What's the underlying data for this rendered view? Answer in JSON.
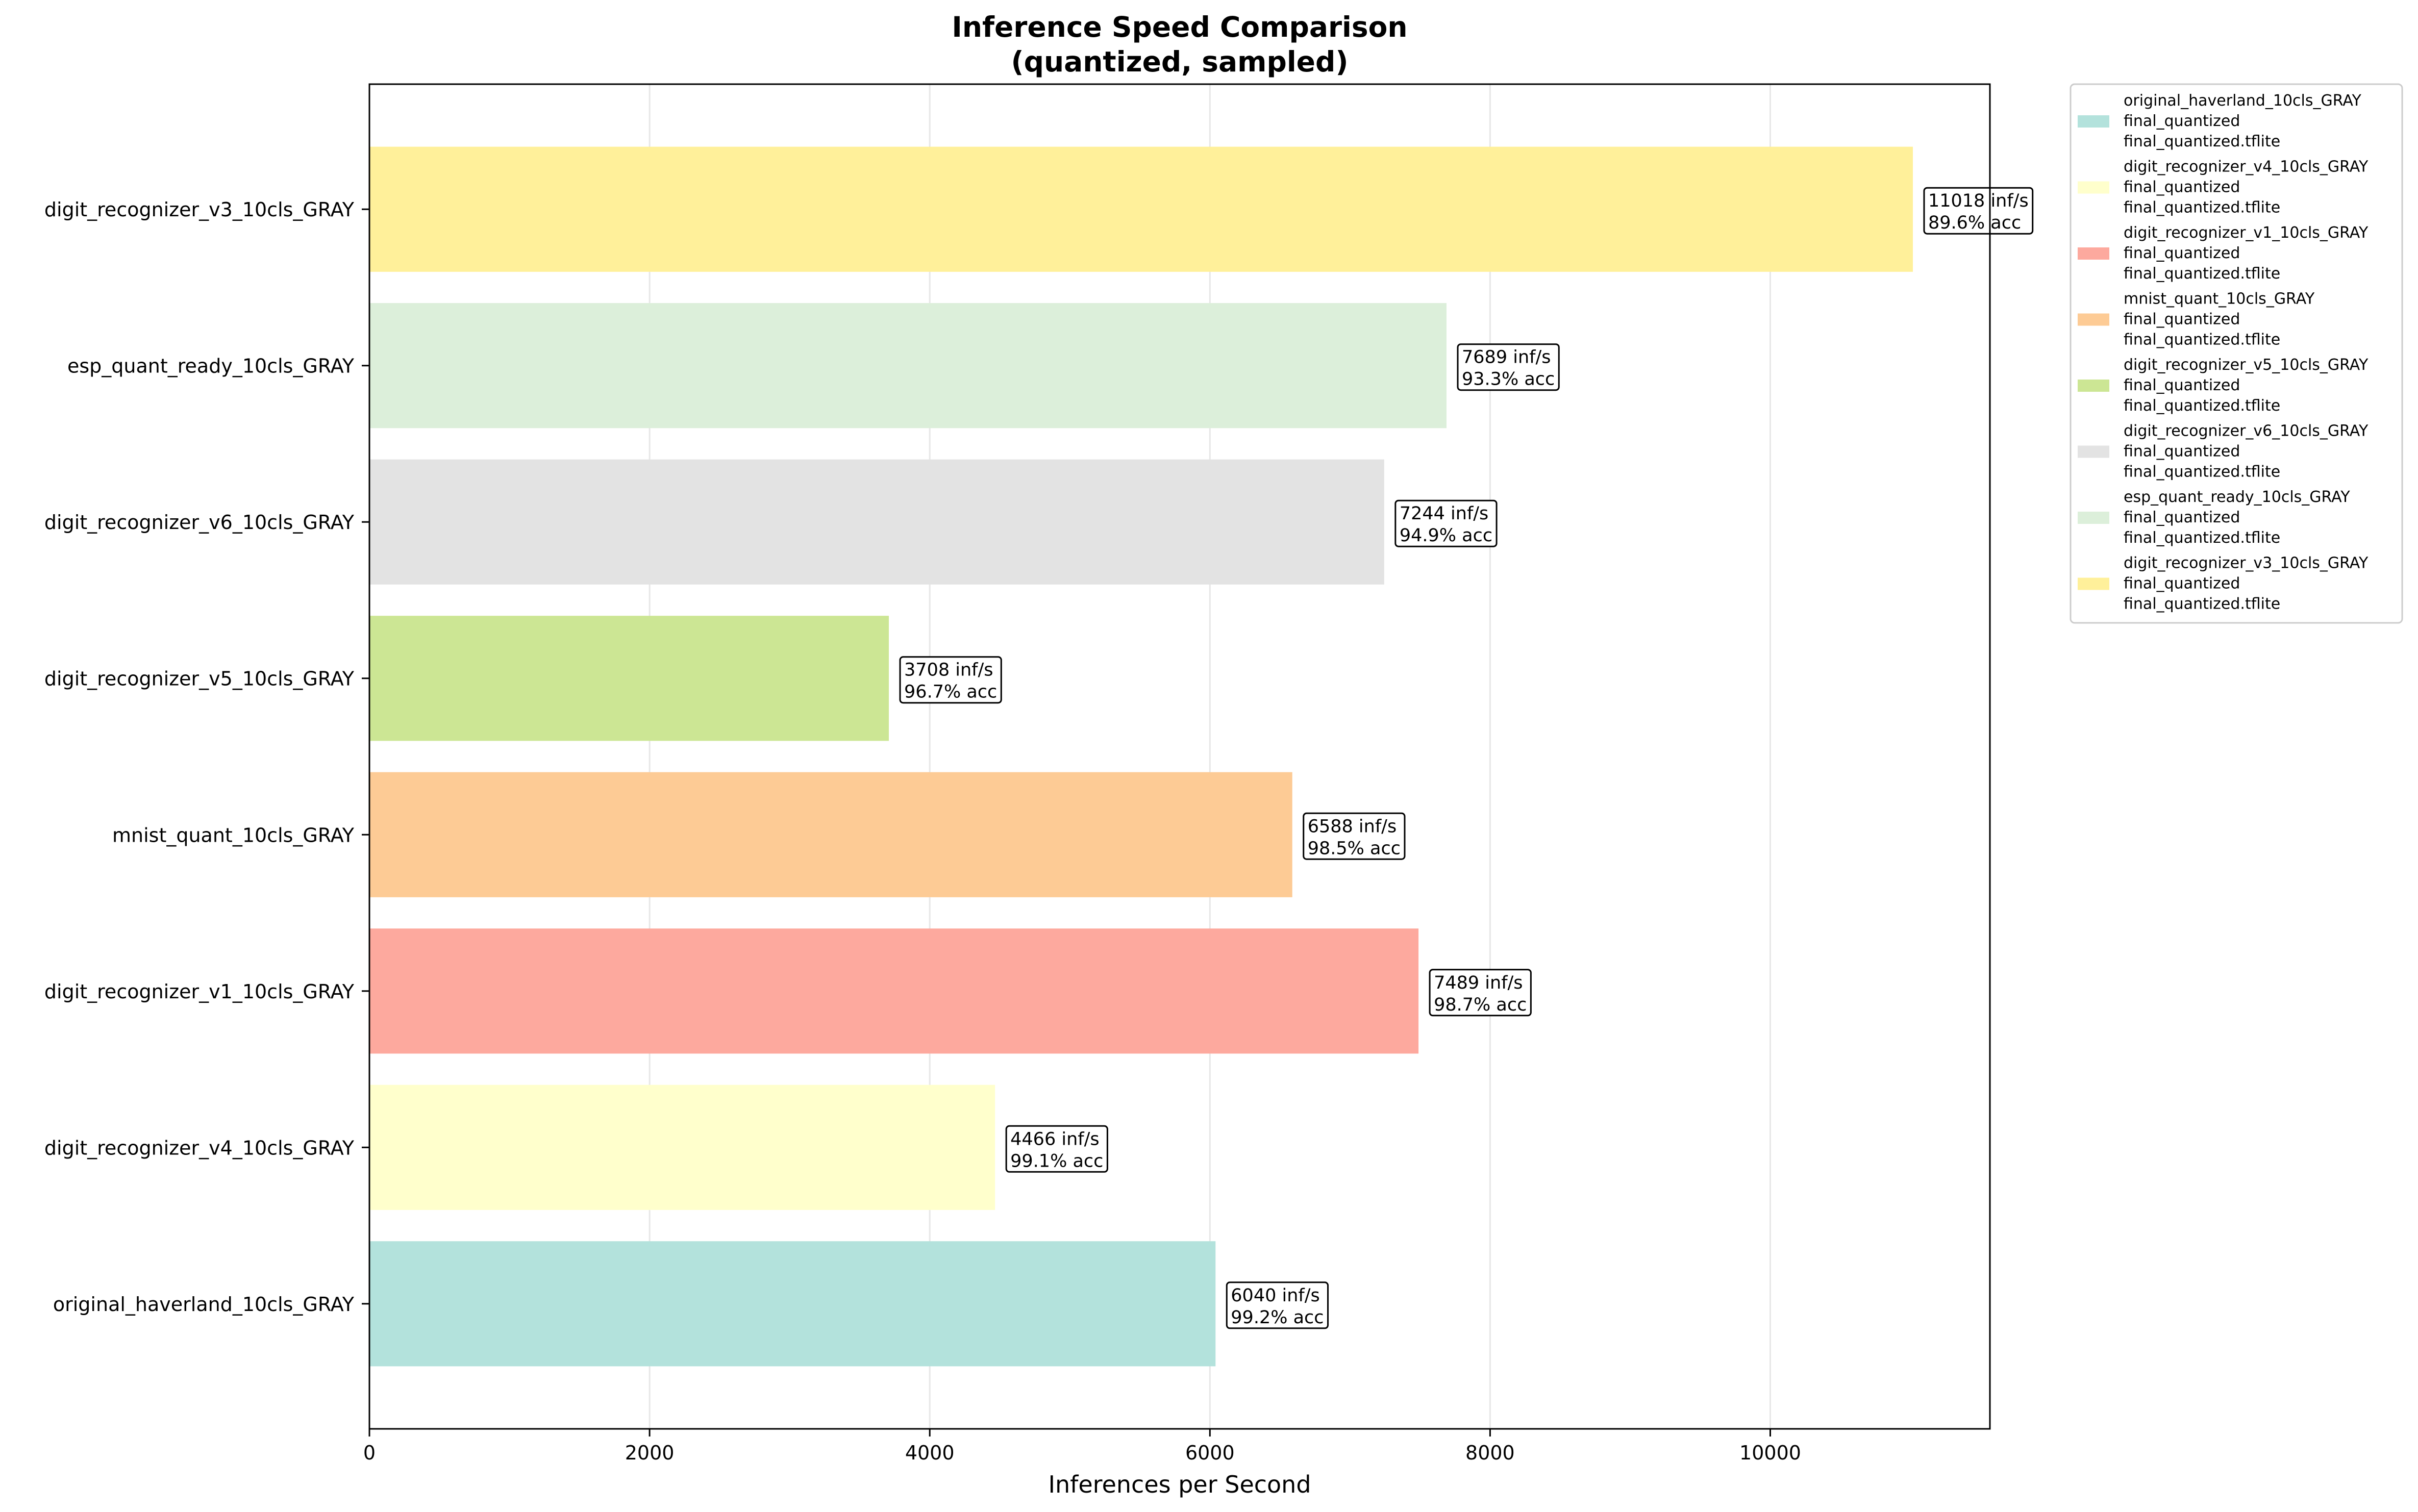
{
  "chart_data": {
    "type": "bar",
    "orientation": "horizontal",
    "title": "Inference Speed Comparison",
    "subtitle": "(quantized, sampled)",
    "xlabel": "Inferences per Second",
    "ylabel": "",
    "xlim": [
      0,
      11568
    ],
    "xticks": [
      0,
      2000,
      4000,
      6000,
      8000,
      10000
    ],
    "grid": "vertical",
    "legend_position": "outside-right",
    "categories": [
      "original_haverland_10cls_GRAY",
      "digit_recognizer_v4_10cls_GRAY",
      "digit_recognizer_v1_10cls_GRAY",
      "mnist_quant_10cls_GRAY",
      "digit_recognizer_v5_10cls_GRAY",
      "digit_recognizer_v6_10cls_GRAY",
      "esp_quant_ready_10cls_GRAY",
      "digit_recognizer_v3_10cls_GRAY"
    ],
    "values": [
      6040,
      4466,
      7489,
      6588,
      3708,
      7244,
      7689,
      11018
    ],
    "colors": [
      "#b3e2dc",
      "#ffffcc",
      "#fda99e",
      "#fdcb95",
      "#cce694",
      "#e3e3e3",
      "#dcefda",
      "#fff09a"
    ],
    "bar_labels": [
      [
        "6040 inf/s",
        "99.2% acc"
      ],
      [
        "4466 inf/s",
        "99.1% acc"
      ],
      [
        "7489 inf/s",
        "98.7% acc"
      ],
      [
        "6588 inf/s",
        "98.5% acc"
      ],
      [
        "3708 inf/s",
        "96.7% acc"
      ],
      [
        "7244 inf/s",
        "94.9% acc"
      ],
      [
        "7689 inf/s",
        "93.3% acc"
      ],
      [
        "11018 inf/s",
        "89.6% acc"
      ]
    ],
    "legend": [
      [
        "original_haverland_10cls_GRAY",
        "final_quantized",
        "final_quantized.tflite"
      ],
      [
        "digit_recognizer_v4_10cls_GRAY",
        "final_quantized",
        "final_quantized.tflite"
      ],
      [
        "digit_recognizer_v1_10cls_GRAY",
        "final_quantized",
        "final_quantized.tflite"
      ],
      [
        "mnist_quant_10cls_GRAY",
        "final_quantized",
        "final_quantized.tflite"
      ],
      [
        "digit_recognizer_v5_10cls_GRAY",
        "final_quantized",
        "final_quantized.tflite"
      ],
      [
        "digit_recognizer_v6_10cls_GRAY",
        "final_quantized",
        "final_quantized.tflite"
      ],
      [
        "esp_quant_ready_10cls_GRAY",
        "final_quantized",
        "final_quantized.tflite"
      ],
      [
        "digit_recognizer_v3_10cls_GRAY",
        "final_quantized",
        "final_quantized.tflite"
      ]
    ]
  }
}
